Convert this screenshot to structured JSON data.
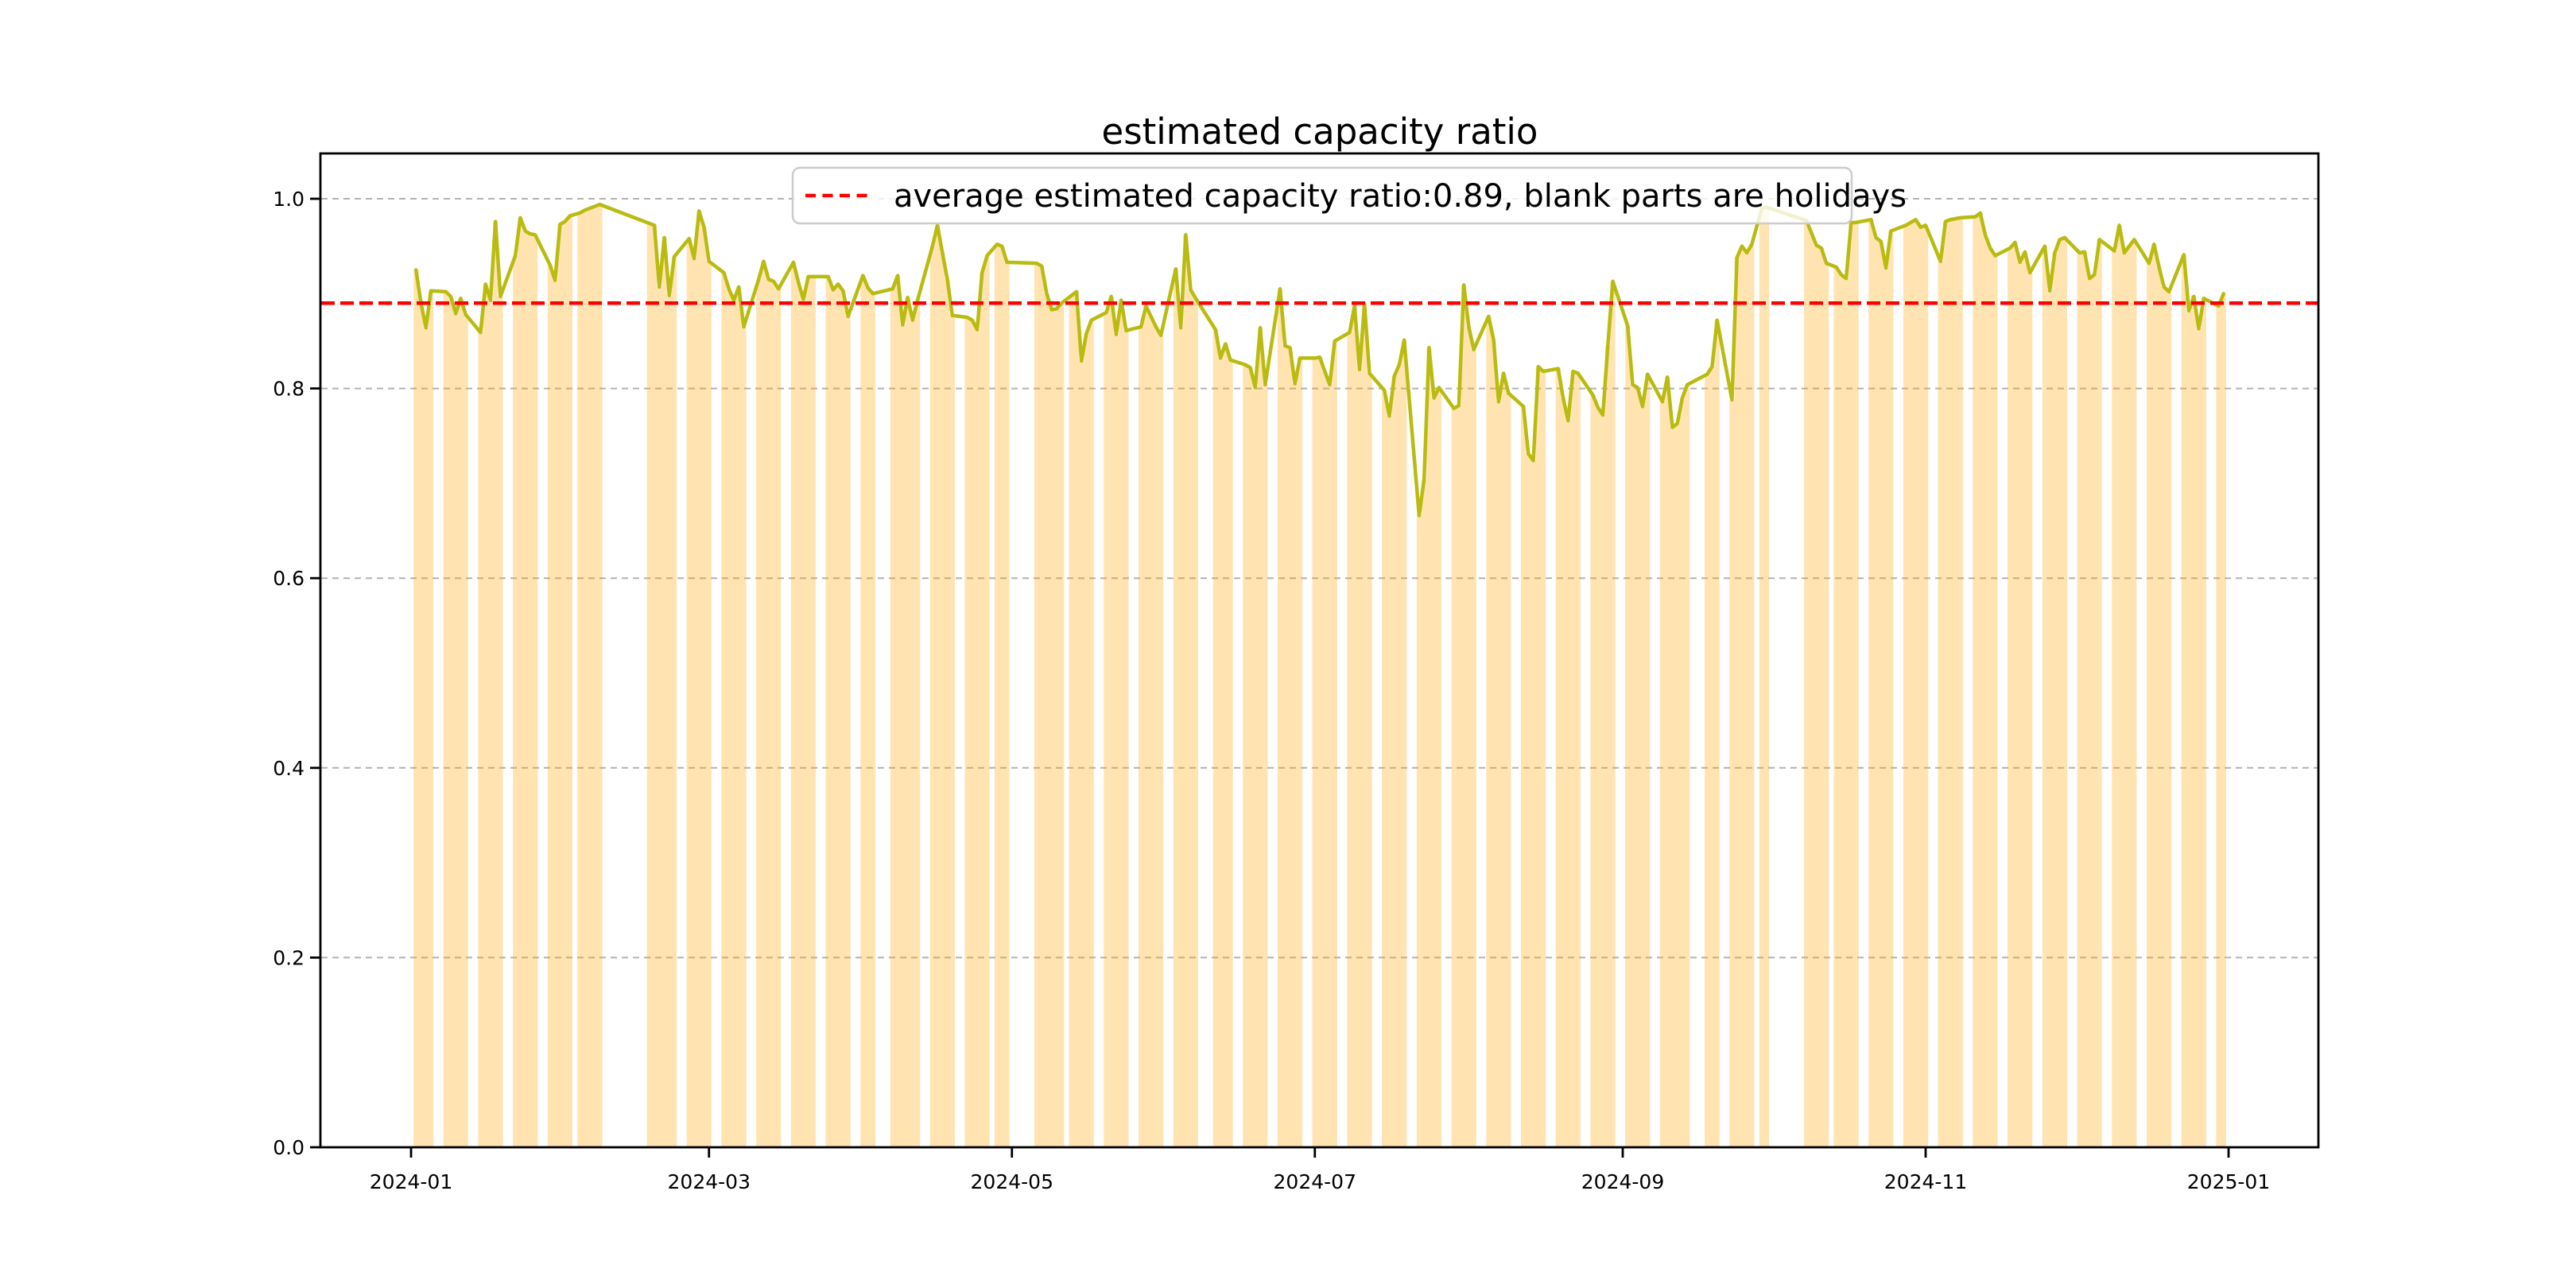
{
  "chart_data": {
    "type": "line",
    "title": "estimated capacity ratio",
    "xlabel": "",
    "ylabel": "",
    "ylim": [
      0.0,
      1.048
    ],
    "x_range": [
      "2023-12-14",
      "2025-01-19"
    ],
    "grid": "horizontal-dashed",
    "y_ticks": [
      "0.0",
      "0.2",
      "0.4",
      "0.6",
      "0.8",
      "1.0"
    ],
    "y_tick_values": [
      0.0,
      0.2,
      0.4,
      0.6,
      0.8,
      1.0
    ],
    "x_ticks": [
      "2024-01",
      "2024-03",
      "2024-05",
      "2024-07",
      "2024-09",
      "2024-11",
      "2025-01"
    ],
    "legend": {
      "position": "upper center",
      "entries": [
        "average estimated capacity ratio:0.89, blank parts are holidays"
      ]
    },
    "average_line": {
      "value": 0.89,
      "style": "dashed"
    },
    "workday_fill": {
      "note": "orange bars under the line on workdays; blank parts are holidays/weekends",
      "alpha": 0.3
    },
    "series": [
      {
        "name": "estimated capacity ratio",
        "points": [
          [
            "2024-01-02",
            0.925
          ],
          [
            "2024-01-03",
            0.89
          ],
          [
            "2024-01-04",
            0.864
          ],
          [
            "2024-01-05",
            0.903
          ],
          [
            "2024-01-08",
            0.902
          ],
          [
            "2024-01-09",
            0.897
          ],
          [
            "2024-01-10",
            0.879
          ],
          [
            "2024-01-11",
            0.895
          ],
          [
            "2024-01-12",
            0.878
          ],
          [
            "2024-01-15",
            0.859
          ],
          [
            "2024-01-16",
            0.91
          ],
          [
            "2024-01-17",
            0.893
          ],
          [
            "2024-01-18",
            0.976
          ],
          [
            "2024-01-19",
            0.897
          ],
          [
            "2024-01-22",
            0.94
          ],
          [
            "2024-01-23",
            0.98
          ],
          [
            "2024-01-24",
            0.966
          ],
          [
            "2024-01-25",
            0.963
          ],
          [
            "2024-01-26",
            0.962
          ],
          [
            "2024-01-29",
            0.93
          ],
          [
            "2024-01-30",
            0.914
          ],
          [
            "2024-01-31",
            0.973
          ],
          [
            "2024-02-01",
            0.976
          ],
          [
            "2024-02-02",
            0.982
          ],
          [
            "2024-02-04",
            0.985
          ],
          [
            "2024-02-05",
            0.988
          ],
          [
            "2024-02-06",
            0.99
          ],
          [
            "2024-02-07",
            0.992
          ],
          [
            "2024-02-08",
            0.994
          ],
          [
            "2024-02-18",
            0.974
          ],
          [
            "2024-02-19",
            0.972
          ],
          [
            "2024-02-20",
            0.907
          ],
          [
            "2024-02-21",
            0.959
          ],
          [
            "2024-02-22",
            0.898
          ],
          [
            "2024-02-23",
            0.939
          ],
          [
            "2024-02-26",
            0.958
          ],
          [
            "2024-02-27",
            0.937
          ],
          [
            "2024-02-28",
            0.987
          ],
          [
            "2024-02-29",
            0.97
          ],
          [
            "2024-03-01",
            0.934
          ],
          [
            "2024-03-04",
            0.922
          ],
          [
            "2024-03-05",
            0.905
          ],
          [
            "2024-03-06",
            0.893
          ],
          [
            "2024-03-07",
            0.907
          ],
          [
            "2024-03-08",
            0.865
          ],
          [
            "2024-03-11",
            0.915
          ],
          [
            "2024-03-12",
            0.934
          ],
          [
            "2024-03-13",
            0.915
          ],
          [
            "2024-03-14",
            0.913
          ],
          [
            "2024-03-15",
            0.905
          ],
          [
            "2024-03-18",
            0.933
          ],
          [
            "2024-03-19",
            0.912
          ],
          [
            "2024-03-20",
            0.894
          ],
          [
            "2024-03-21",
            0.918
          ],
          [
            "2024-03-22",
            0.918
          ],
          [
            "2024-03-25",
            0.918
          ],
          [
            "2024-03-26",
            0.904
          ],
          [
            "2024-03-27",
            0.91
          ],
          [
            "2024-03-28",
            0.903
          ],
          [
            "2024-03-29",
            0.876
          ],
          [
            "2024-04-01",
            0.919
          ],
          [
            "2024-04-02",
            0.906
          ],
          [
            "2024-04-03",
            0.9
          ],
          [
            "2024-04-07",
            0.905
          ],
          [
            "2024-04-08",
            0.919
          ],
          [
            "2024-04-09",
            0.867
          ],
          [
            "2024-04-10",
            0.896
          ],
          [
            "2024-04-11",
            0.872
          ],
          [
            "2024-04-12",
            0.893
          ],
          [
            "2024-04-15",
            0.95
          ],
          [
            "2024-04-16",
            0.972
          ],
          [
            "2024-04-17",
            0.943
          ],
          [
            "2024-04-18",
            0.915
          ],
          [
            "2024-04-19",
            0.877
          ],
          [
            "2024-04-22",
            0.875
          ],
          [
            "2024-04-23",
            0.872
          ],
          [
            "2024-04-24",
            0.862
          ],
          [
            "2024-04-25",
            0.922
          ],
          [
            "2024-04-26",
            0.94
          ],
          [
            "2024-04-28",
            0.952
          ],
          [
            "2024-04-29",
            0.95
          ],
          [
            "2024-04-30",
            0.933
          ],
          [
            "2024-05-06",
            0.932
          ],
          [
            "2024-05-07",
            0.929
          ],
          [
            "2024-05-08",
            0.9
          ],
          [
            "2024-05-09",
            0.883
          ],
          [
            "2024-05-10",
            0.884
          ],
          [
            "2024-05-11",
            0.89
          ],
          [
            "2024-05-13",
            0.898
          ],
          [
            "2024-05-14",
            0.902
          ],
          [
            "2024-05-15",
            0.829
          ],
          [
            "2024-05-16",
            0.858
          ],
          [
            "2024-05-17",
            0.872
          ],
          [
            "2024-05-20",
            0.88
          ],
          [
            "2024-05-21",
            0.897
          ],
          [
            "2024-05-22",
            0.857
          ],
          [
            "2024-05-23",
            0.893
          ],
          [
            "2024-05-24",
            0.861
          ],
          [
            "2024-05-27",
            0.865
          ],
          [
            "2024-05-28",
            0.887
          ],
          [
            "2024-05-29",
            0.876
          ],
          [
            "2024-05-30",
            0.865
          ],
          [
            "2024-05-31",
            0.856
          ],
          [
            "2024-06-03",
            0.926
          ],
          [
            "2024-06-04",
            0.864
          ],
          [
            "2024-06-05",
            0.962
          ],
          [
            "2024-06-06",
            0.904
          ],
          [
            "2024-06-07",
            0.895
          ],
          [
            "2024-06-11",
            0.862
          ],
          [
            "2024-06-12",
            0.832
          ],
          [
            "2024-06-13",
            0.847
          ],
          [
            "2024-06-14",
            0.83
          ],
          [
            "2024-06-17",
            0.825
          ],
          [
            "2024-06-18",
            0.822
          ],
          [
            "2024-06-19",
            0.801
          ],
          [
            "2024-06-20",
            0.864
          ],
          [
            "2024-06-21",
            0.804
          ],
          [
            "2024-06-24",
            0.905
          ],
          [
            "2024-06-25",
            0.845
          ],
          [
            "2024-06-26",
            0.843
          ],
          [
            "2024-06-27",
            0.805
          ],
          [
            "2024-06-28",
            0.832
          ],
          [
            "2024-07-01",
            0.832
          ],
          [
            "2024-07-02",
            0.833
          ],
          [
            "2024-07-03",
            0.818
          ],
          [
            "2024-07-04",
            0.804
          ],
          [
            "2024-07-05",
            0.85
          ],
          [
            "2024-07-08",
            0.859
          ],
          [
            "2024-07-09",
            0.887
          ],
          [
            "2024-07-10",
            0.82
          ],
          [
            "2024-07-11",
            0.889
          ],
          [
            "2024-07-12",
            0.816
          ],
          [
            "2024-07-15",
            0.798
          ],
          [
            "2024-07-16",
            0.771
          ],
          [
            "2024-07-17",
            0.813
          ],
          [
            "2024-07-18",
            0.825
          ],
          [
            "2024-07-19",
            0.851
          ],
          [
            "2024-07-22",
            0.666
          ],
          [
            "2024-07-23",
            0.704
          ],
          [
            "2024-07-24",
            0.843
          ],
          [
            "2024-07-25",
            0.79
          ],
          [
            "2024-07-26",
            0.801
          ],
          [
            "2024-07-29",
            0.779
          ],
          [
            "2024-07-30",
            0.782
          ],
          [
            "2024-07-31",
            0.909
          ],
          [
            "2024-08-01",
            0.865
          ],
          [
            "2024-08-02",
            0.841
          ],
          [
            "2024-08-05",
            0.876
          ],
          [
            "2024-08-06",
            0.851
          ],
          [
            "2024-08-07",
            0.786
          ],
          [
            "2024-08-08",
            0.816
          ],
          [
            "2024-08-09",
            0.795
          ],
          [
            "2024-08-12",
            0.781
          ],
          [
            "2024-08-13",
            0.731
          ],
          [
            "2024-08-14",
            0.724
          ],
          [
            "2024-08-15",
            0.823
          ],
          [
            "2024-08-16",
            0.818
          ],
          [
            "2024-08-19",
            0.821
          ],
          [
            "2024-08-20",
            0.79
          ],
          [
            "2024-08-21",
            0.766
          ],
          [
            "2024-08-22",
            0.818
          ],
          [
            "2024-08-23",
            0.816
          ],
          [
            "2024-08-26",
            0.793
          ],
          [
            "2024-08-27",
            0.78
          ],
          [
            "2024-08-28",
            0.772
          ],
          [
            "2024-08-29",
            0.845
          ],
          [
            "2024-08-30",
            0.913
          ],
          [
            "2024-09-02",
            0.866
          ],
          [
            "2024-09-03",
            0.804
          ],
          [
            "2024-09-04",
            0.801
          ],
          [
            "2024-09-05",
            0.781
          ],
          [
            "2024-09-06",
            0.815
          ],
          [
            "2024-09-09",
            0.786
          ],
          [
            "2024-09-10",
            0.812
          ],
          [
            "2024-09-11",
            0.759
          ],
          [
            "2024-09-12",
            0.763
          ],
          [
            "2024-09-13",
            0.79
          ],
          [
            "2024-09-14",
            0.804
          ],
          [
            "2024-09-18",
            0.815
          ],
          [
            "2024-09-19",
            0.823
          ],
          [
            "2024-09-20",
            0.872
          ],
          [
            "2024-09-23",
            0.788
          ],
          [
            "2024-09-24",
            0.938
          ],
          [
            "2024-09-25",
            0.95
          ],
          [
            "2024-09-26",
            0.943
          ],
          [
            "2024-09-27",
            0.952
          ],
          [
            "2024-09-29",
            0.99
          ],
          [
            "2024-09-30",
            0.991
          ],
          [
            "2024-10-08",
            0.977
          ],
          [
            "2024-10-09",
            0.964
          ],
          [
            "2024-10-10",
            0.951
          ],
          [
            "2024-10-11",
            0.948
          ],
          [
            "2024-10-12",
            0.932
          ],
          [
            "2024-10-14",
            0.928
          ],
          [
            "2024-10-15",
            0.92
          ],
          [
            "2024-10-16",
            0.916
          ],
          [
            "2024-10-17",
            0.975
          ],
          [
            "2024-10-18",
            0.975
          ],
          [
            "2024-10-21",
            0.978
          ],
          [
            "2024-10-22",
            0.959
          ],
          [
            "2024-10-23",
            0.955
          ],
          [
            "2024-10-24",
            0.927
          ],
          [
            "2024-10-25",
            0.966
          ],
          [
            "2024-10-28",
            0.972
          ],
          [
            "2024-10-29",
            0.975
          ],
          [
            "2024-10-30",
            0.978
          ],
          [
            "2024-10-31",
            0.97
          ],
          [
            "2024-11-01",
            0.972
          ],
          [
            "2024-11-04",
            0.934
          ],
          [
            "2024-11-05",
            0.976
          ],
          [
            "2024-11-06",
            0.978
          ],
          [
            "2024-11-07",
            0.979
          ],
          [
            "2024-11-08",
            0.98
          ],
          [
            "2024-11-11",
            0.981
          ],
          [
            "2024-11-12",
            0.985
          ],
          [
            "2024-11-13",
            0.962
          ],
          [
            "2024-11-14",
            0.948
          ],
          [
            "2024-11-15",
            0.94
          ],
          [
            "2024-11-18",
            0.948
          ],
          [
            "2024-11-19",
            0.954
          ],
          [
            "2024-11-20",
            0.933
          ],
          [
            "2024-11-21",
            0.944
          ],
          [
            "2024-11-22",
            0.922
          ],
          [
            "2024-11-25",
            0.95
          ],
          [
            "2024-11-26",
            0.903
          ],
          [
            "2024-11-27",
            0.943
          ],
          [
            "2024-11-28",
            0.957
          ],
          [
            "2024-11-29",
            0.959
          ],
          [
            "2024-12-02",
            0.943
          ],
          [
            "2024-12-03",
            0.944
          ],
          [
            "2024-12-04",
            0.916
          ],
          [
            "2024-12-05",
            0.92
          ],
          [
            "2024-12-06",
            0.957
          ],
          [
            "2024-12-09",
            0.945
          ],
          [
            "2024-12-10",
            0.972
          ],
          [
            "2024-12-11",
            0.943
          ],
          [
            "2024-12-12",
            0.95
          ],
          [
            "2024-12-13",
            0.957
          ],
          [
            "2024-12-16",
            0.932
          ],
          [
            "2024-12-17",
            0.952
          ],
          [
            "2024-12-18",
            0.928
          ],
          [
            "2024-12-19",
            0.907
          ],
          [
            "2024-12-20",
            0.902
          ],
          [
            "2024-12-23",
            0.941
          ],
          [
            "2024-12-24",
            0.882
          ],
          [
            "2024-12-25",
            0.897
          ],
          [
            "2024-12-26",
            0.863
          ],
          [
            "2024-12-27",
            0.895
          ],
          [
            "2024-12-30",
            0.887
          ],
          [
            "2024-12-31",
            0.9
          ]
        ]
      }
    ],
    "colors": {
      "line": "#b9bb10",
      "workday_band": "#ffa500",
      "average_line": "#ff0000",
      "grid": "#b2b2b2",
      "spine": "#000000",
      "text": "#000000",
      "legend_border": "#cccccc"
    }
  }
}
